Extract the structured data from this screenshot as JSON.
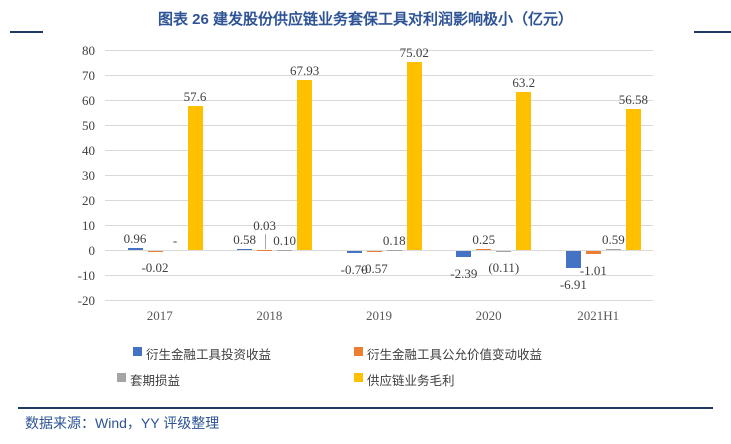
{
  "title": "图表 26 建发股份供应链业务套保工具对利润影响极小（亿元）",
  "source": "数据来源：Wind，YY 评级整理",
  "chart_data": {
    "type": "bar",
    "title": "图表 26 建发股份供应链业务套保工具对利润影响极小（亿元）",
    "unit": "亿元",
    "categories": [
      "2017",
      "2018",
      "2019",
      "2020",
      "2021H1"
    ],
    "series": [
      {
        "name": "衍生金融工具投资收益",
        "color": "#4472C4",
        "values": [
          0.96,
          0.58,
          -0.7,
          -2.39,
          -6.91
        ],
        "labels": [
          "0.96",
          "0.58",
          "-0.70",
          "-2.39",
          "-6.91"
        ]
      },
      {
        "name": "衍生金融工具公允价值变动收益",
        "color": "#ED7D31",
        "values": [
          -0.02,
          0.03,
          -0.57,
          0.25,
          -1.01
        ],
        "labels": [
          "-0.02",
          "0.03",
          "-0.57",
          "0.25",
          "-1.01"
        ]
      },
      {
        "name": "套期损益",
        "color": "#A5A5A5",
        "values": [
          null,
          0.1,
          0.18,
          -0.11,
          0.59
        ],
        "labels": [
          "-",
          "0.10",
          "0.18",
          "(0.11)",
          "0.59"
        ]
      },
      {
        "name": "供应链业务毛利",
        "color": "#FFC000",
        "values": [
          57.6,
          67.93,
          75.02,
          63.2,
          56.58
        ],
        "labels": [
          "57.6",
          "67.93",
          "75.02",
          "63.2",
          "56.58"
        ]
      }
    ],
    "ylim": [
      -20,
      80
    ],
    "yticks": [
      80,
      70,
      60,
      50,
      40,
      30,
      20,
      10,
      0,
      -10,
      -20
    ],
    "grid": true,
    "gridline_color": "#D9D9D9",
    "legend_position": "bottom",
    "label_overrides": [
      {
        "series": 1,
        "group": 1,
        "dy": -15,
        "leader": true
      }
    ]
  }
}
